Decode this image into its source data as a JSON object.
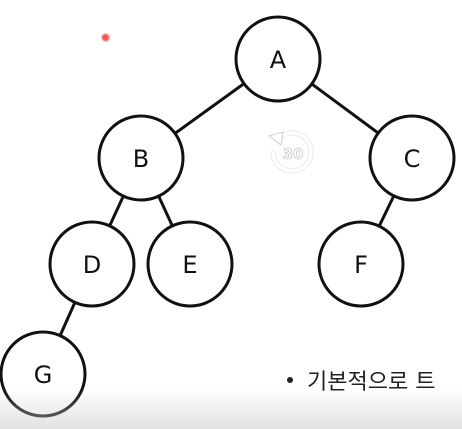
{
  "tree": {
    "nodes": [
      {
        "id": "A",
        "label": "A"
      },
      {
        "id": "B",
        "label": "B"
      },
      {
        "id": "C",
        "label": "C"
      },
      {
        "id": "D",
        "label": "D"
      },
      {
        "id": "E",
        "label": "E"
      },
      {
        "id": "F",
        "label": "F"
      },
      {
        "id": "G",
        "label": "G"
      }
    ],
    "edges": [
      [
        "A",
        "B"
      ],
      [
        "A",
        "C"
      ],
      [
        "B",
        "D"
      ],
      [
        "B",
        "E"
      ],
      [
        "C",
        "F"
      ],
      [
        "D",
        "G"
      ]
    ],
    "stroke_color": "#111111",
    "fill_color": "#ffffff"
  },
  "bullet": {
    "text": "기본적으로 트"
  },
  "player": {
    "rewind_label": "30",
    "rewind_icon": "rewind-30-icon",
    "laser_color": "#ff3b3b"
  }
}
